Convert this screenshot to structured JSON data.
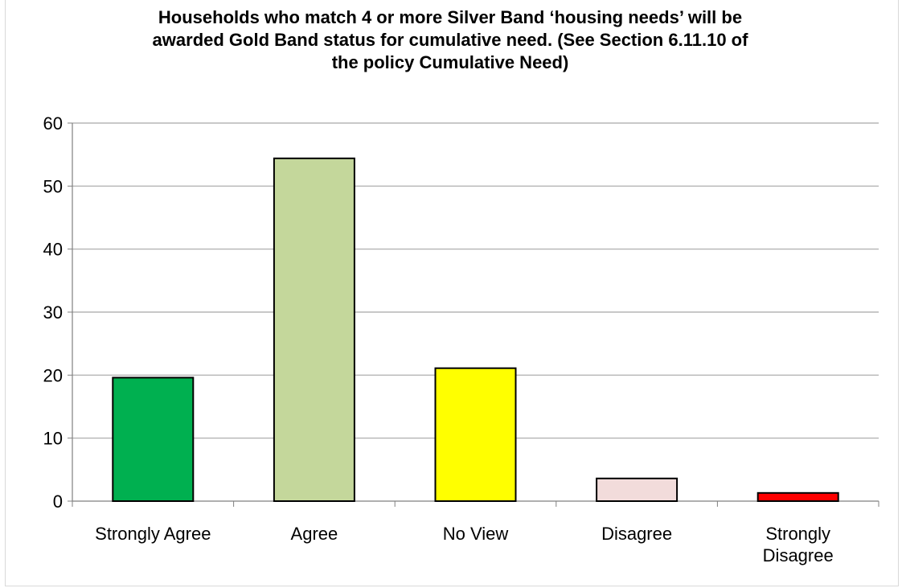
{
  "chart_data": {
    "type": "bar",
    "title_lines": [
      "Households who match 4 or more Silver Band ‘housing needs’ will be",
      "awarded Gold Band status for cumulative need. (See Section 6.11.10 of",
      "the policy  Cumulative Need)"
    ],
    "categories": [
      [
        "Strongly Agree"
      ],
      [
        "Agree"
      ],
      [
        "No View"
      ],
      [
        "Disagree"
      ],
      [
        "Strongly",
        "Disagree"
      ]
    ],
    "values": [
      19.6,
      54.4,
      21.1,
      3.6,
      1.3
    ],
    "colors": [
      "#00b050",
      "#c4d79b",
      "#ffff00",
      "#f2dcdb",
      "#ff0000"
    ],
    "ylim": [
      0,
      60
    ],
    "yticks": [
      0,
      10,
      20,
      30,
      40,
      50,
      60
    ],
    "grid": true,
    "legend": "none"
  }
}
